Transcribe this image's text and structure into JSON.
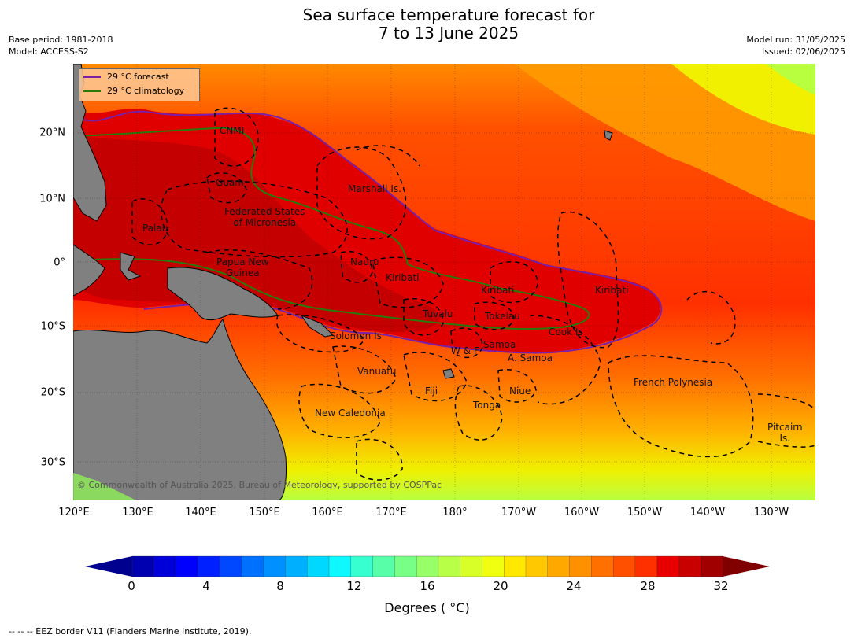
{
  "title_line1": "Sea surface temperature forecast for",
  "title_line2": "7 to 13 June 2025",
  "base_period": "Base period: 1981-2018",
  "model": "Model: ACCESS-S2",
  "model_run": "Model run: 31/05/2025",
  "issued": "Issued: 02/06/2025",
  "legend": {
    "forecast": "29 °C  forecast",
    "climatology": "29 °C  climatology",
    "forecast_color": "#7a1fa8",
    "climatology_color": "#2a7a0a"
  },
  "longitude_ticks": [
    "120°E",
    "130°E",
    "140°E",
    "150°E",
    "160°E",
    "170°E",
    "180°",
    "170°W",
    "160°W",
    "150°W",
    "140°W",
    "130°W"
  ],
  "latitude_ticks": [
    "20°N",
    "10°N",
    "0°",
    "10°S",
    "20°S",
    "30°S"
  ],
  "regions": [
    "CNMI",
    "Guam",
    "Marshall Is.",
    "Federated States\nof Micronesia",
    "Palau",
    "Papua New\nGuinea",
    "Nauru",
    "Kiribati",
    "Kiribati",
    "Kiribati",
    "Tuvalu",
    "Tokelau",
    "Cook Is",
    "Solomon Is",
    "W & F",
    "Samoa",
    "A. Samoa",
    "Vanuatu",
    "Fiji",
    "Niue",
    "Tonga",
    "French Polynesia",
    "New Caledonia",
    "Pitcairn\nIs."
  ],
  "copyright": "© Commonwealth of Australia 2025, Bureau of Meteorology, supported by COSPPac",
  "colorbar": {
    "ticks": [
      "0",
      "4",
      "8",
      "12",
      "16",
      "20",
      "24",
      "28",
      "32"
    ],
    "label": "Degrees ( °C)",
    "colors": [
      "#00008f",
      "#0000b0",
      "#0000d8",
      "#0000ff",
      "#0020ff",
      "#0048ff",
      "#0070ff",
      "#0090ff",
      "#00b0ff",
      "#00d8ff",
      "#10f8ff",
      "#38ffd0",
      "#58ffa8",
      "#78ff88",
      "#98ff68",
      "#b8ff48",
      "#d8ff28",
      "#f0ff10",
      "#ffe800",
      "#ffc800",
      "#ffa800",
      "#ff9000",
      "#ff7000",
      "#ff5000",
      "#ff3000",
      "#e80000",
      "#c80000",
      "#a00000",
      "#800000"
    ]
  },
  "footnote": "--  --  -- EEZ border V11 (Flanders Marine Institute, 2019)."
}
